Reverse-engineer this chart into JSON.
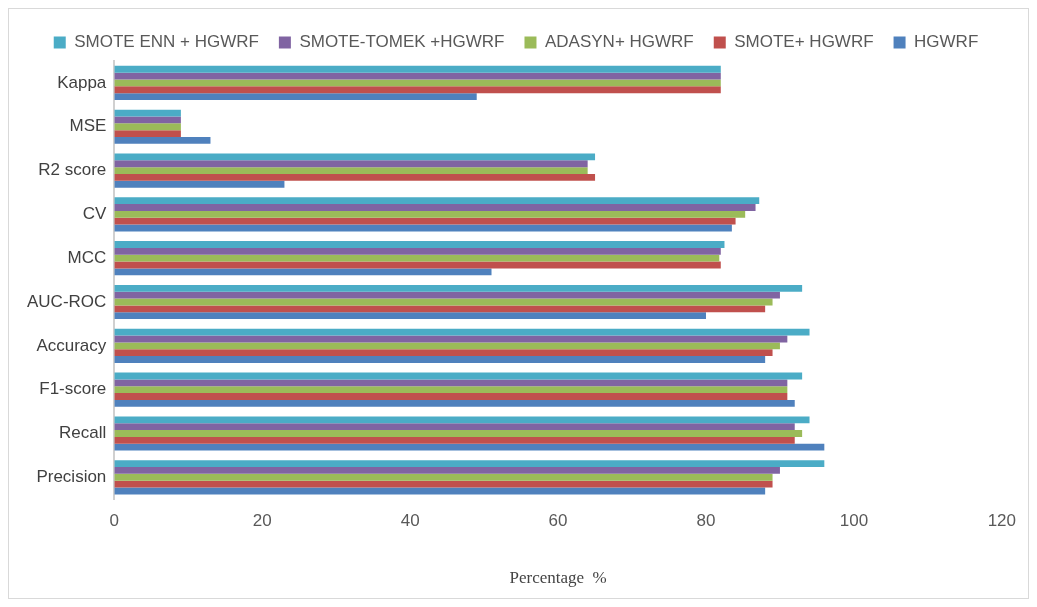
{
  "chart_data": {
    "type": "bar",
    "orientation": "horizontal",
    "xlabel": "Percentage  %",
    "categories": [
      "Kappa",
      "MSE",
      "R2 score",
      "CV",
      "MCC",
      "AUC-ROC",
      "Accuracy",
      "F1-score",
      "Recall",
      "Precision"
    ],
    "series": [
      {
        "name": "SMOTE ENN + HGWRF",
        "color": "#4bacc6",
        "values": [
          82,
          9,
          65,
          87.2,
          82.5,
          93,
          94,
          93,
          94,
          96
        ]
      },
      {
        "name": "SMOTE-TOMEK +HGWRF",
        "color": "#8064a2",
        "values": [
          82,
          9,
          64,
          86.7,
          82,
          90,
          91,
          91,
          92,
          90
        ]
      },
      {
        "name": "ADASYN+ HGWRF",
        "color": "#9bbb59",
        "values": [
          82,
          9,
          64,
          85.3,
          81.8,
          89,
          90,
          91,
          93,
          89
        ]
      },
      {
        "name": "SMOTE+ HGWRF",
        "color": "#c0504d",
        "values": [
          82,
          9,
          65,
          84,
          82,
          88,
          89,
          91,
          92,
          89
        ]
      },
      {
        "name": "HGWRF",
        "color": "#4f81bd",
        "values": [
          49,
          13,
          23,
          83.5,
          51,
          80,
          88,
          92,
          96,
          88
        ]
      }
    ],
    "xlim": [
      0,
      120
    ],
    "xticks": [
      0,
      20,
      40,
      60,
      80,
      100,
      120
    ],
    "grid": false,
    "legend": "top"
  }
}
